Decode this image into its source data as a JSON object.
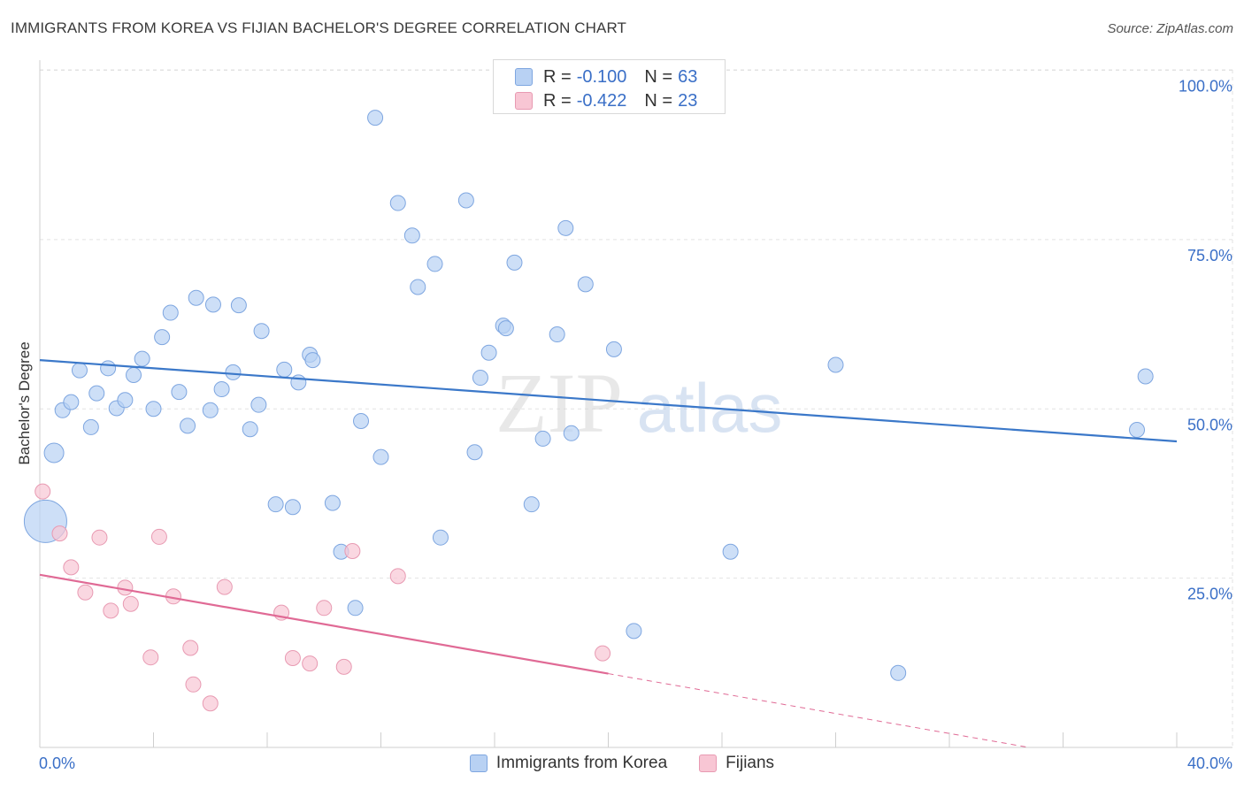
{
  "title": "IMMIGRANTS FROM KOREA VS FIJIAN BACHELOR'S DEGREE CORRELATION CHART",
  "source": "Source: ZipAtlas.com",
  "watermark": {
    "zip": "ZIP",
    "atlas": "atlas"
  },
  "legend": {
    "r_label": "R =",
    "n_label": "N =",
    "rows": [
      {
        "r": "-0.100",
        "n": "63",
        "fill": "#b8d1f3",
        "stroke": "#7ea6e0"
      },
      {
        "r": "-0.422",
        "n": "23",
        "fill": "#f8c6d4",
        "stroke": "#e89ab2"
      }
    ]
  },
  "chart_data": {
    "type": "scatter",
    "title": "IMMIGRANTS FROM KOREA VS FIJIAN BACHELOR'S DEGREE CORRELATION CHART",
    "xlabel": "",
    "ylabel": "Bachelor's Degree",
    "xlim": [
      0,
      40
    ],
    "ylim": [
      0,
      100
    ],
    "x_tick_labels": [
      "0.0%",
      "40.0%"
    ],
    "y_ticks": [
      25,
      50,
      75,
      100
    ],
    "y_tick_labels": [
      "25.0%",
      "50.0%",
      "75.0%",
      "100.0%"
    ],
    "grid": true,
    "legend_position": "bottom",
    "series": [
      {
        "name": "Immigrants from Korea",
        "color": "#7ea6e0",
        "fill": "#b8d1f3",
        "trend": {
          "x": [
            0,
            40
          ],
          "y": [
            57.2,
            45.2
          ],
          "color": "#3b78c9"
        },
        "points": [
          [
            0.5,
            43.5
          ],
          [
            0.8,
            49.8
          ],
          [
            1.1,
            51
          ],
          [
            1.4,
            55.7
          ],
          [
            1.8,
            47.3
          ],
          [
            2.0,
            52.3
          ],
          [
            2.4,
            56
          ],
          [
            2.7,
            50.1
          ],
          [
            3.0,
            51.3
          ],
          [
            3.3,
            55
          ],
          [
            3.6,
            57.4
          ],
          [
            4.0,
            50
          ],
          [
            4.3,
            60.6
          ],
          [
            4.6,
            64.2
          ],
          [
            4.9,
            52.5
          ],
          [
            5.2,
            47.5
          ],
          [
            5.5,
            66.4
          ],
          [
            6.0,
            49.8
          ],
          [
            6.1,
            65.4
          ],
          [
            6.4,
            52.9
          ],
          [
            6.8,
            55.4
          ],
          [
            7.0,
            65.3
          ],
          [
            7.4,
            47
          ],
          [
            7.7,
            50.6
          ],
          [
            7.8,
            61.5
          ],
          [
            8.3,
            35.9
          ],
          [
            8.6,
            55.8
          ],
          [
            8.9,
            35.5
          ],
          [
            9.1,
            53.9
          ],
          [
            9.5,
            58
          ],
          [
            9.6,
            57.2
          ],
          [
            10.3,
            36.1
          ],
          [
            10.6,
            28.9
          ],
          [
            11.1,
            20.6
          ],
          [
            11.3,
            48.2
          ],
          [
            11.8,
            93
          ],
          [
            12.0,
            42.9
          ],
          [
            12.6,
            80.4
          ],
          [
            13.1,
            75.6
          ],
          [
            13.3,
            68
          ],
          [
            13.9,
            71.4
          ],
          [
            14.1,
            31
          ],
          [
            15.0,
            80.8
          ],
          [
            15.3,
            43.6
          ],
          [
            15.5,
            54.6
          ],
          [
            15.8,
            58.3
          ],
          [
            16.3,
            62.3
          ],
          [
            16.4,
            61.9
          ],
          [
            16.7,
            71.6
          ],
          [
            17.3,
            35.9
          ],
          [
            17.7,
            45.6
          ],
          [
            18.2,
            61
          ],
          [
            18.5,
            76.7
          ],
          [
            18.7,
            46.4
          ],
          [
            19.2,
            68.4
          ],
          [
            20.2,
            58.8
          ],
          [
            20.9,
            17.2
          ],
          [
            24.3,
            28.9
          ],
          [
            28.0,
            56.5
          ],
          [
            30.2,
            11
          ],
          [
            38.6,
            46.9
          ],
          [
            38.9,
            54.8
          ],
          [
            0.2,
            33.4
          ]
        ]
      },
      {
        "name": "Fijians",
        "color": "#e89ab2",
        "fill": "#f8c6d4",
        "trend": {
          "x": [
            0,
            20
          ],
          "y": [
            25.5,
            10.9
          ],
          "color": "#e06a95"
        },
        "trend_dashed": {
          "x": [
            20,
            34.8
          ],
          "y": [
            10.9,
            0
          ]
        },
        "points": [
          [
            0.1,
            37.8
          ],
          [
            0.7,
            31.6
          ],
          [
            1.1,
            26.6
          ],
          [
            1.6,
            22.9
          ],
          [
            2.1,
            31
          ],
          [
            2.5,
            20.2
          ],
          [
            3.0,
            23.6
          ],
          [
            3.2,
            21.2
          ],
          [
            3.9,
            13.3
          ],
          [
            4.2,
            31.1
          ],
          [
            4.7,
            22.3
          ],
          [
            5.3,
            14.7
          ],
          [
            5.4,
            9.3
          ],
          [
            6.0,
            6.5
          ],
          [
            6.5,
            23.7
          ],
          [
            8.5,
            19.9
          ],
          [
            8.9,
            13.2
          ],
          [
            9.5,
            12.4
          ],
          [
            10.0,
            20.6
          ],
          [
            10.7,
            11.9
          ],
          [
            11.0,
            29
          ],
          [
            12.6,
            25.3
          ],
          [
            19.8,
            13.9
          ]
        ]
      }
    ]
  }
}
